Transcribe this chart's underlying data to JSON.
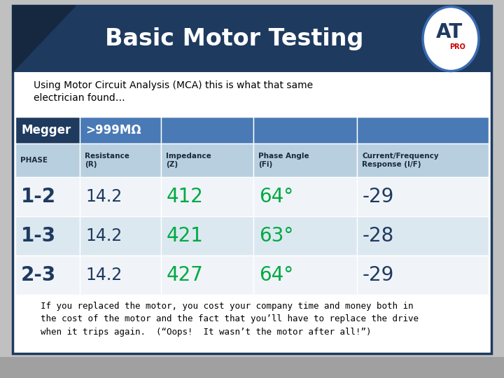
{
  "title": "Basic Motor Testing",
  "subtitle": "Using Motor Circuit Analysis (MCA) this is what that same\nelectrician found…",
  "footer": "If you replaced the motor, you cost your company time and money both in\nthe cost of the motor and the fact that you’ll have to replace the drive\nwhen it trips again.  (“Oops!  It wasn’t the motor after all!”)",
  "header_row1": [
    "Megger",
    ">999MΩ",
    "",
    "",
    ""
  ],
  "header_row2": [
    "PHASE",
    "Resistance\n(R)",
    "Impedance\n(Z)",
    "Phase Angle\n(Fi)",
    "Current/Frequency\nResponse (I/F)"
  ],
  "data_rows": [
    [
      "1-2",
      "14.2",
      "412",
      "64°",
      "-29"
    ],
    [
      "1-3",
      "14.2",
      "421",
      "63°",
      "-28"
    ],
    [
      "2-3",
      "14.2",
      "427",
      "64°",
      "-29"
    ]
  ],
  "col_colors_row1": [
    "#1e3a5f",
    "#4a7ab5",
    "#4a7ab5",
    "#4a7ab5",
    "#4a7ab5"
  ],
  "col_colors_row2": [
    "#b8cfe0",
    "#b8cfe0",
    "#b8cfe0",
    "#b8cfe0",
    "#b8cfe0"
  ],
  "data_row_colors": [
    "#f0f4f8",
    "#dce8f0",
    "#f0f4f8"
  ],
  "outer_bg": "#c0c0c0",
  "panel_bg": "#ffffff",
  "panel_border": "#1e3a5f",
  "title_bg": "#1e3a5f",
  "title_color": "#ffffff",
  "subtitle_color": "#000000",
  "footer_color": "#000000",
  "green_color": "#00aa44",
  "dark_color": "#1e3a5f",
  "header2_text_color": "#1a2a3a",
  "logo_border_color": "#3a6ab0",
  "logo_text_color": "#1e3a5f",
  "logo_pro_color": "#cc0000"
}
